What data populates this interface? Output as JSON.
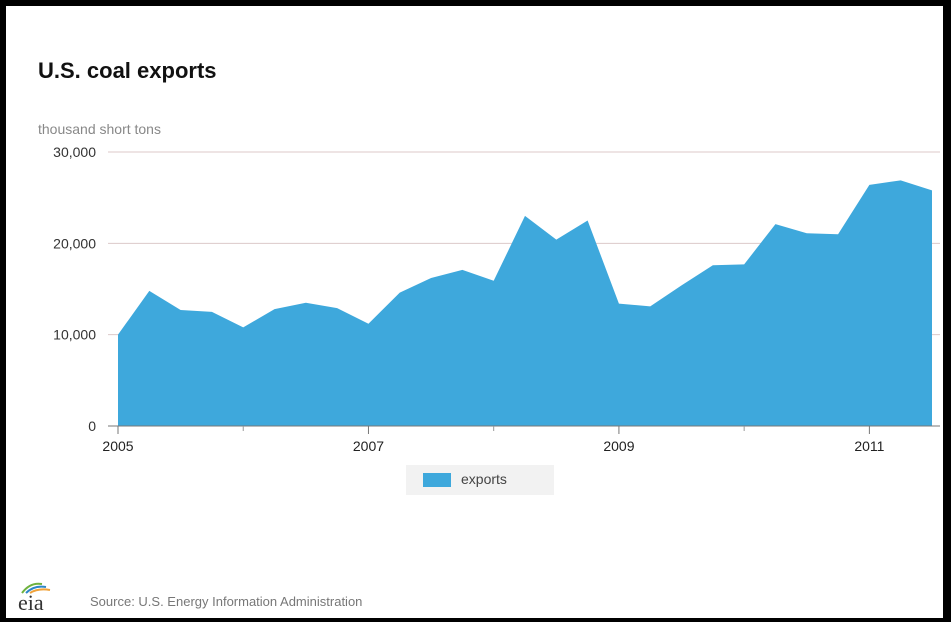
{
  "chart_data": {
    "type": "area",
    "title": "U.S. coal exports",
    "ylabel": "thousand short tons",
    "ylim": [
      0,
      30000
    ],
    "yticks": [
      0,
      10000,
      20000,
      30000
    ],
    "ytick_labels": [
      "0",
      "10,000",
      "20,000",
      "30,000"
    ],
    "xticks": [
      2005,
      2007,
      2009,
      2011
    ],
    "xtick_labels": [
      "2005",
      "2007",
      "2009",
      "2011"
    ],
    "grid": true,
    "legend_position": "bottom-center",
    "series": [
      {
        "name": "exports",
        "color": "#3ea8dc",
        "points": [
          [
            2005.0,
            10000
          ],
          [
            2005.25,
            14800
          ],
          [
            2005.5,
            12700
          ],
          [
            2005.75,
            12500
          ],
          [
            2006.0,
            10800
          ],
          [
            2006.25,
            12800
          ],
          [
            2006.5,
            13500
          ],
          [
            2006.75,
            12900
          ],
          [
            2007.0,
            11200
          ],
          [
            2007.25,
            14600
          ],
          [
            2007.5,
            16200
          ],
          [
            2007.75,
            17100
          ],
          [
            2008.0,
            15900
          ],
          [
            2008.25,
            23000
          ],
          [
            2008.5,
            20400
          ],
          [
            2008.75,
            22500
          ],
          [
            2009.0,
            13400
          ],
          [
            2009.25,
            13100
          ],
          [
            2009.5,
            15400
          ],
          [
            2009.75,
            17600
          ],
          [
            2010.0,
            17700
          ],
          [
            2010.25,
            22100
          ],
          [
            2010.5,
            21100
          ],
          [
            2010.75,
            21000
          ],
          [
            2011.0,
            26400
          ],
          [
            2011.25,
            26900
          ],
          [
            2011.5,
            25800
          ]
        ]
      }
    ]
  },
  "source": "Source: U.S. Energy Information Administration",
  "logo_text": "eia"
}
